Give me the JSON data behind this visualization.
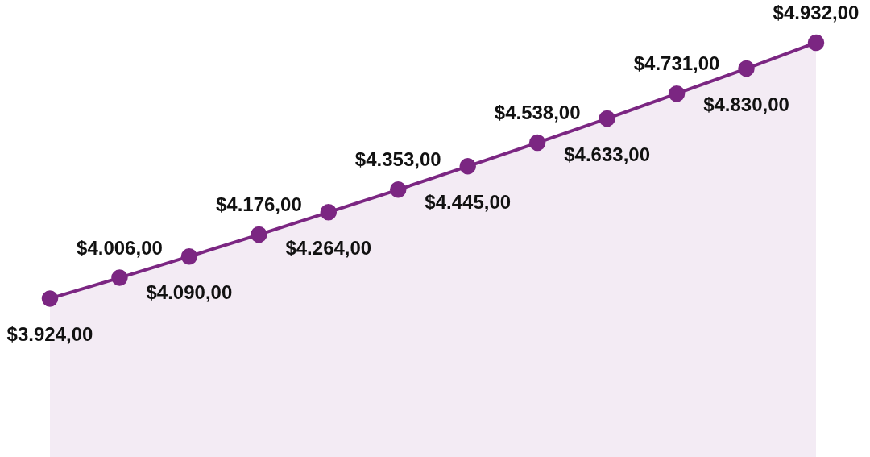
{
  "chart_data": {
    "type": "area",
    "categories": [
      null,
      null,
      null,
      null,
      null,
      null,
      null,
      null,
      null,
      null,
      null,
      null
    ],
    "series": [
      {
        "color": "#7b2682",
        "values": [
          3924,
          4006,
          4090,
          4176,
          4264,
          4353,
          4445,
          4538,
          4633,
          4731,
          4830,
          4932
        ],
        "value_labels": [
          "$3.924,00",
          "$4.006,00",
          "$4.090,00",
          "$4.176,00",
          "$4.264,00",
          "$4.353,00",
          "$4.445,00",
          "$4.538,00",
          "$4.633,00",
          "$4.731,00",
          "$4.830,00",
          "$4.932,00"
        ]
      }
    ],
    "ylim": [
      3300,
      5100
    ],
    "marker": "circle",
    "line_style": "solid"
  }
}
